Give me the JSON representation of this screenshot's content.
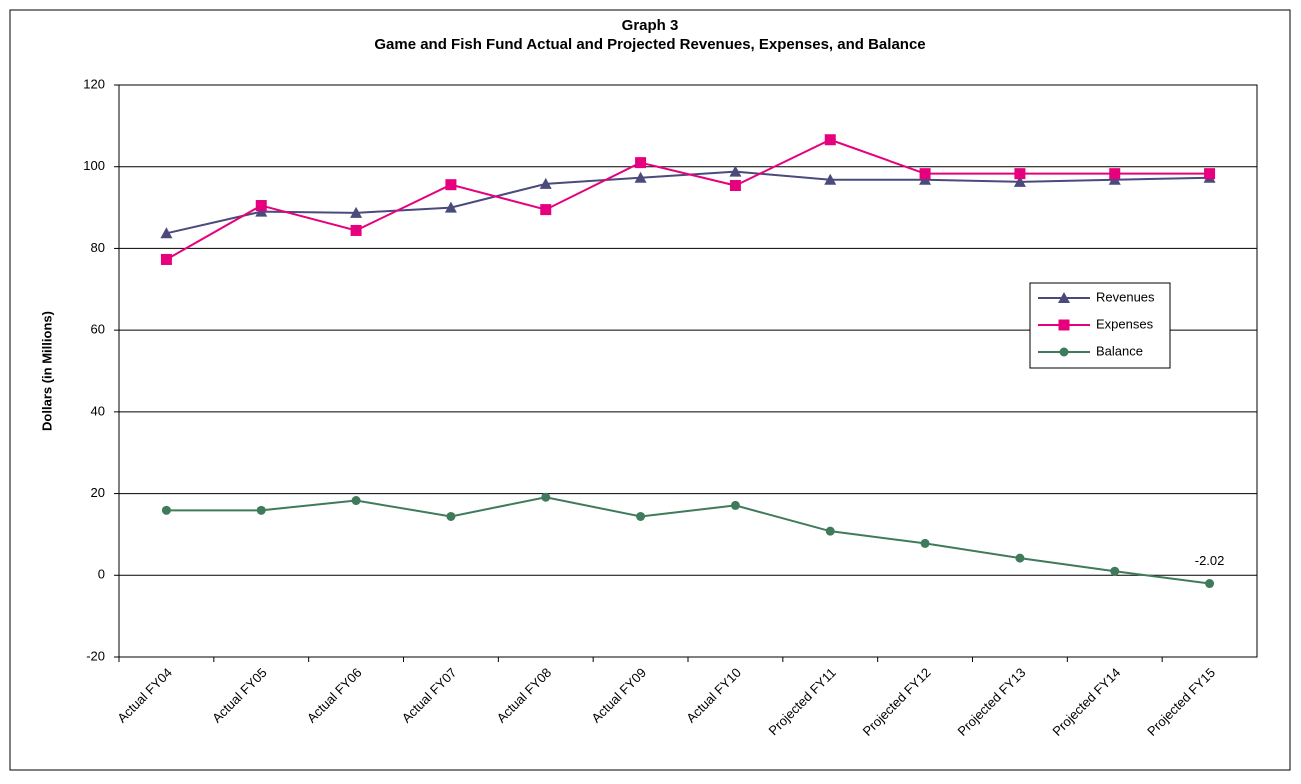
{
  "chart_data": {
    "type": "line",
    "title": "Graph 3",
    "subtitle": "Game and Fish Fund Actual and Projected Revenues, Expenses, and Balance",
    "y_label": "Dollars      (in Millions)",
    "categories": [
      "Actual FY04",
      "Actual FY05",
      "Actual FY06",
      "Actual FY07",
      "Actual FY08",
      "Actual FY09",
      "Actual FY10",
      "Projected FY11",
      "Projected FY12",
      "Projected FY13",
      "Projected FY14",
      "Projected FY15"
    ],
    "series": [
      {
        "name": "Revenues",
        "color": "#4b4a7c",
        "marker": "triangle",
        "values": [
          83.7,
          89,
          88.7,
          90,
          95.8,
          97.3,
          98.8,
          96.8,
          96.8,
          96.3,
          96.8,
          97.3
        ]
      },
      {
        "name": "Expenses",
        "color": "#e6007e",
        "marker": "square",
        "values": [
          77.3,
          90.5,
          84.4,
          95.6,
          89.5,
          101,
          95.4,
          106.6,
          98.3,
          98.3,
          98.3,
          98.3
        ]
      },
      {
        "name": "Balance",
        "color": "#3f7b5a",
        "marker": "circle",
        "values": [
          15.9,
          15.9,
          18.3,
          14.4,
          19.1,
          14.4,
          17.1,
          10.8,
          7.8,
          4.2,
          1,
          -2.02
        ],
        "value_labels": [
          null,
          null,
          null,
          null,
          null,
          null,
          null,
          null,
          null,
          null,
          null,
          "-2.02"
        ]
      }
    ],
    "ylim": [
      -20,
      120
    ],
    "yticks": [
      -20,
      0,
      20,
      40,
      60,
      80,
      100,
      120
    ],
    "grid": true,
    "legend": "right"
  }
}
